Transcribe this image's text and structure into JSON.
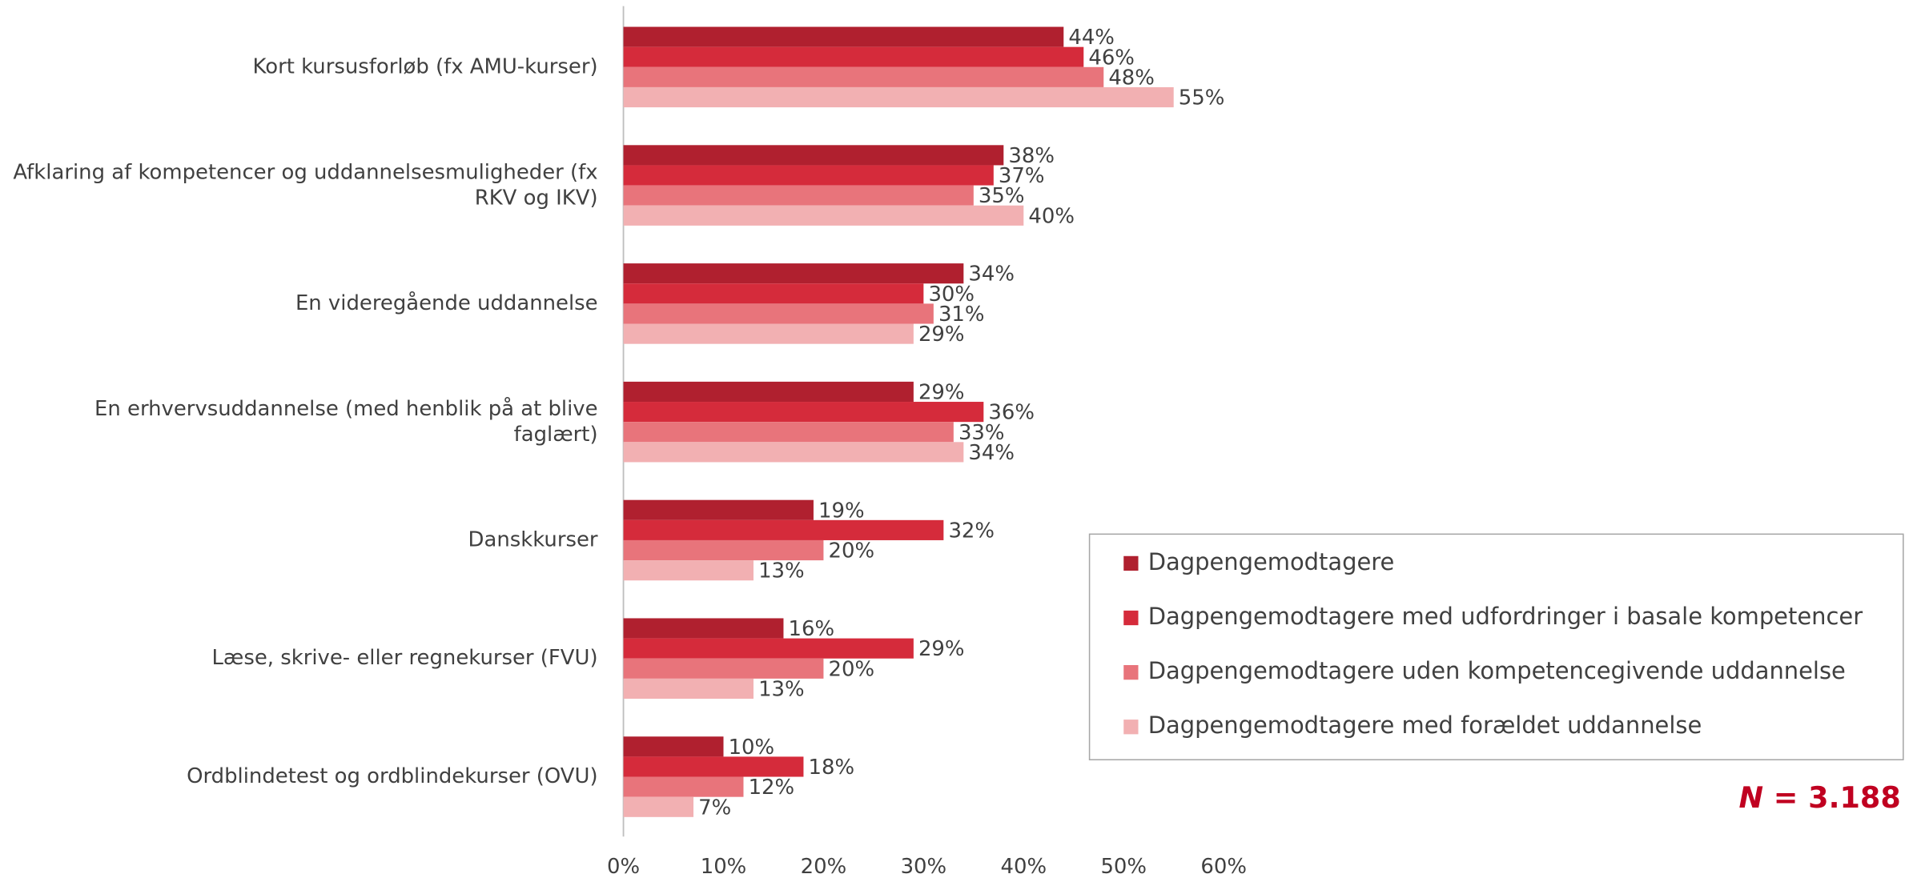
{
  "chart_data": {
    "type": "bar",
    "orientation": "horizontal",
    "categories": [
      "Kort kursusforløb (fx AMU-kurser)",
      "Afklaring af kompetencer og uddannelsesmuligheder (fx RKV og IKV)",
      "En videregående uddannelse",
      "En erhvervsuddannelse (med henblik på at blive faglært)",
      "Danskkurser",
      "Læse, skrive- eller regnekurser (FVU)",
      "Ordblindetest og ordblindekurser (OVU)"
    ],
    "series": [
      {
        "name": "Dagpengemodtagere",
        "color": "#b0202f",
        "values": [
          44,
          38,
          34,
          29,
          19,
          16,
          10
        ],
        "value_labels": [
          "44%",
          "38%",
          "34%",
          "29%",
          "19%",
          "16%",
          "10%"
        ]
      },
      {
        "name": "Dagpengemodtagere med udfordringer i basale kompetencer",
        "color": "#d52b3b",
        "values": [
          46,
          37,
          30,
          36,
          32,
          29,
          18
        ],
        "value_labels": [
          "46%",
          "37%",
          "30%",
          "36%",
          "32%",
          "29%",
          "18%"
        ]
      },
      {
        "name": "Dagpengemodtagere uden kompetencegivende uddannelse",
        "color": "#e8747b",
        "values": [
          48,
          35,
          31,
          33,
          20,
          20,
          12
        ],
        "value_labels": [
          "48%",
          "35%",
          "31%",
          "33%",
          "20%",
          "20%",
          "12%"
        ]
      },
      {
        "name": "Dagpengemodtagere med forældet uddannelse",
        "color": "#f2b0b2",
        "values": [
          55,
          40,
          29,
          34,
          13,
          13,
          7
        ],
        "value_labels": [
          "55%",
          "40%",
          "29%",
          "34%",
          "13%",
          "13%",
          "7%"
        ]
      }
    ],
    "xlim": [
      0,
      60
    ],
    "xticks": [
      {
        "value": 0,
        "label": "0%"
      },
      {
        "value": 10,
        "label": "10%"
      },
      {
        "value": 20,
        "label": "20%"
      },
      {
        "value": 30,
        "label": "30%"
      },
      {
        "value": 40,
        "label": "40%"
      },
      {
        "value": 50,
        "label": "50%"
      },
      {
        "value": 60,
        "label": "60%"
      }
    ],
    "legend": "lower right",
    "annotation": {
      "symbol": "N",
      "text": "= 3.188"
    }
  }
}
